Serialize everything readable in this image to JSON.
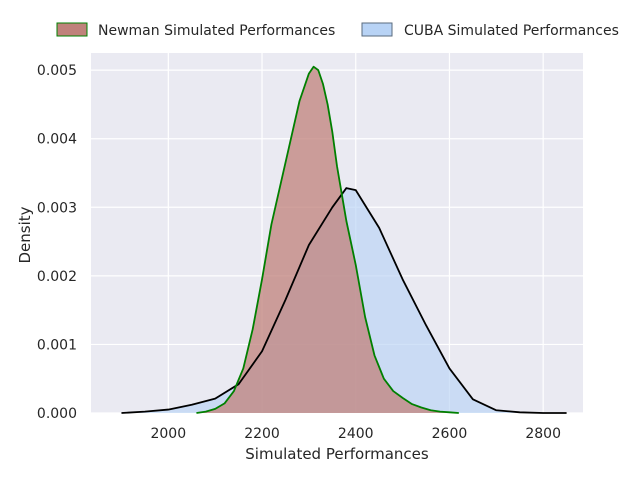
{
  "chart_data": {
    "type": "area",
    "title": "",
    "xlabel": "Simulated Performances",
    "ylabel": "Density",
    "xlim": [
      1835,
      2885
    ],
    "ylim": [
      0,
      0.00525
    ],
    "x_ticks": [
      2000,
      2200,
      2400,
      2600,
      2800
    ],
    "y_ticks": [
      0.0,
      0.001,
      0.002,
      0.003,
      0.004,
      0.005
    ],
    "x_tick_labels": [
      "2000",
      "2200",
      "2400",
      "2600",
      "2800"
    ],
    "y_tick_labels": [
      "0.000",
      "0.001",
      "0.002",
      "0.003",
      "0.004",
      "0.005"
    ],
    "grid": true,
    "legend_position": "top, above plot",
    "colors": {
      "plot_background": "#EAEAF2",
      "grid": "#FFFFFF"
    },
    "series": [
      {
        "name": "Newman Simulated Performances",
        "fill": "#C0827B",
        "line": "#008000",
        "x": [
          2060,
          2080,
          2100,
          2120,
          2140,
          2160,
          2180,
          2200,
          2220,
          2240,
          2260,
          2280,
          2300,
          2310,
          2320,
          2330,
          2340,
          2350,
          2360,
          2370,
          2380,
          2400,
          2420,
          2440,
          2460,
          2480,
          2500,
          2520,
          2540,
          2560,
          2580,
          2600,
          2620
        ],
        "y": [
          0.0,
          2e-05,
          6e-05,
          0.00014,
          0.00032,
          0.00065,
          0.00122,
          0.00195,
          0.00275,
          0.00335,
          0.00395,
          0.00455,
          0.00495,
          0.00505,
          0.005,
          0.0048,
          0.0045,
          0.0041,
          0.0036,
          0.0032,
          0.0028,
          0.00216,
          0.0014,
          0.00084,
          0.0005,
          0.00032,
          0.00022,
          0.00013,
          8e-05,
          4e-05,
          2e-05,
          1e-05,
          0.0
        ]
      },
      {
        "name": "CUBA Simulated Performances",
        "fill": "#B8D3F5",
        "line": "#000000",
        "x": [
          1900,
          1950,
          2000,
          2050,
          2100,
          2150,
          2200,
          2250,
          2300,
          2350,
          2380,
          2400,
          2450,
          2500,
          2550,
          2600,
          2650,
          2700,
          2750,
          2800,
          2850
        ],
        "y": [
          0.0,
          2e-05,
          5e-05,
          0.00012,
          0.00021,
          0.00042,
          0.0009,
          0.00165,
          0.00245,
          0.003,
          0.00328,
          0.00325,
          0.0027,
          0.00195,
          0.00128,
          0.00065,
          0.0002,
          4e-05,
          1e-05,
          0.0,
          0.0
        ]
      }
    ]
  }
}
